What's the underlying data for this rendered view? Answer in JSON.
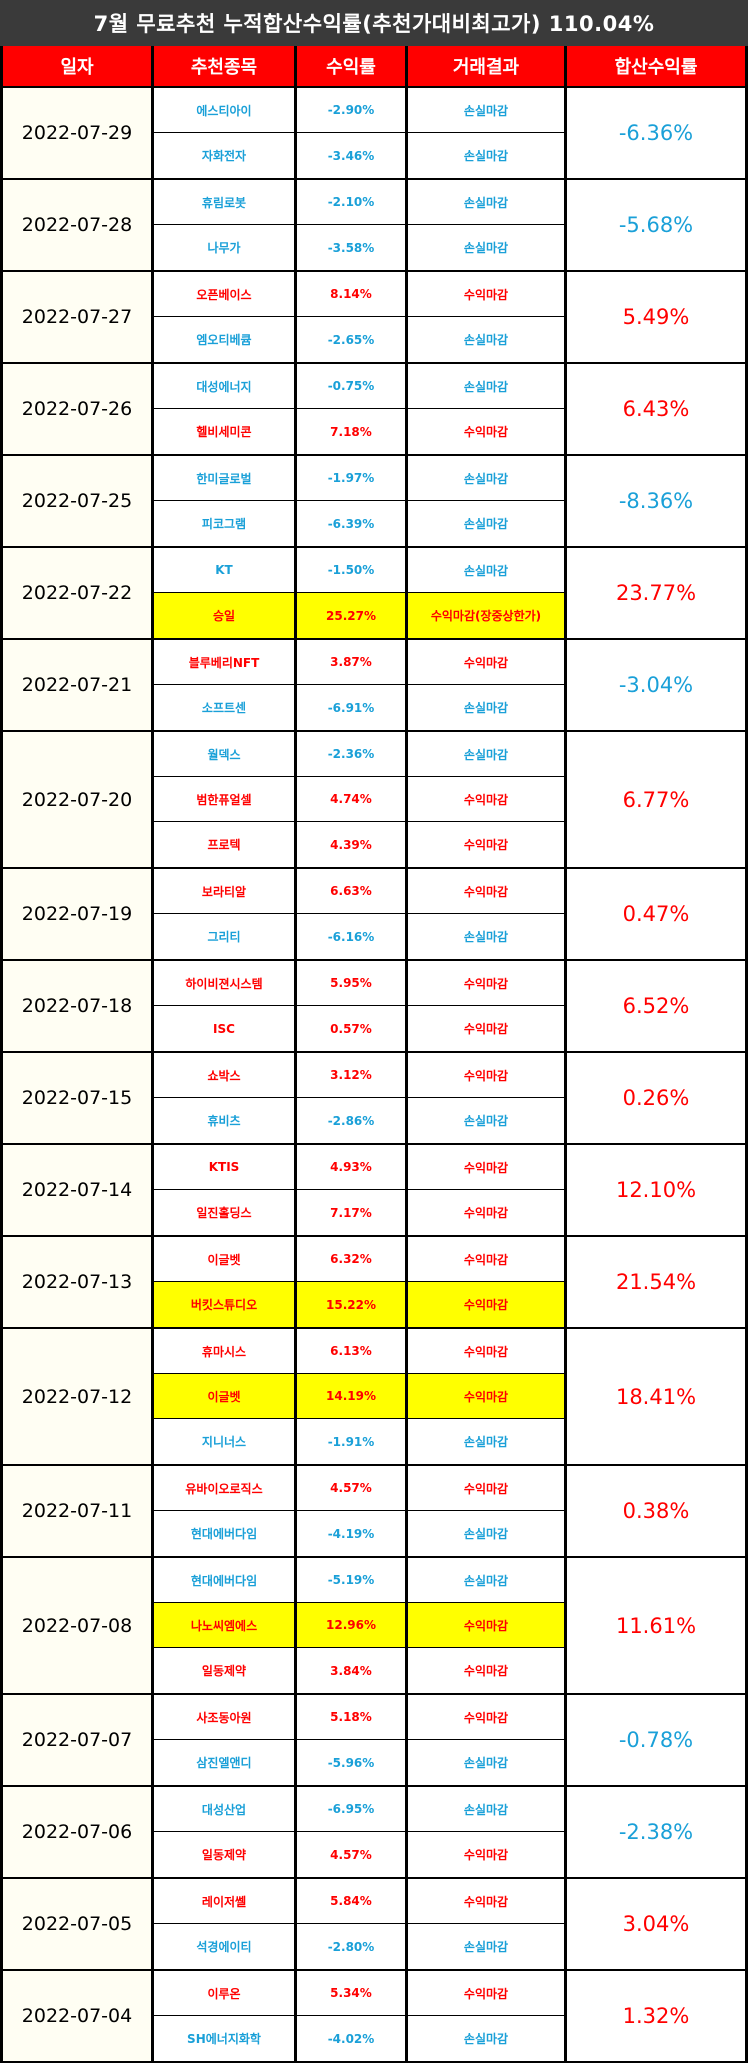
{
  "title": "7월 무료추천 누적합산수익률(추천가대비최고가) 110.04%",
  "headers": [
    "일자",
    "추천종목",
    "수익률",
    "거래결과",
    "합산수익률"
  ],
  "colors": {
    "profit": "#ff0000",
    "loss": "#1aa0d8",
    "highlight": "#ffff00",
    "header_bg": "#ff0000",
    "title_bg": "#3a3a3a"
  },
  "groups": [
    {
      "date": "2022-07-29",
      "total": "-6.36%",
      "rows": [
        {
          "stock": "에스티아이",
          "rate": "-2.90%",
          "result": "손실마감"
        },
        {
          "stock": "자화전자",
          "rate": "-3.46%",
          "result": "손실마감"
        }
      ]
    },
    {
      "date": "2022-07-28",
      "total": "-5.68%",
      "rows": [
        {
          "stock": "휴림로봇",
          "rate": "-2.10%",
          "result": "손실마감"
        },
        {
          "stock": "나무가",
          "rate": "-3.58%",
          "result": "손실마감"
        }
      ]
    },
    {
      "date": "2022-07-27",
      "total": "5.49%",
      "rows": [
        {
          "stock": "오픈베이스",
          "rate": "8.14%",
          "result": "수익마감"
        },
        {
          "stock": "엠오티베큠",
          "rate": "-2.65%",
          "result": "손실마감"
        }
      ]
    },
    {
      "date": "2022-07-26",
      "total": "6.43%",
      "rows": [
        {
          "stock": "대성에너지",
          "rate": "-0.75%",
          "result": "손실마감"
        },
        {
          "stock": "헬비세미콘",
          "rate": "7.18%",
          "result": "수익마감"
        }
      ]
    },
    {
      "date": "2022-07-25",
      "total": "-8.36%",
      "rows": [
        {
          "stock": "한미글로벌",
          "rate": "-1.97%",
          "result": "손실마감"
        },
        {
          "stock": "피코그램",
          "rate": "-6.39%",
          "result": "손실마감"
        }
      ]
    },
    {
      "date": "2022-07-22",
      "total": "23.77%",
      "rows": [
        {
          "stock": "KT",
          "rate": "-1.50%",
          "result": "손실마감"
        },
        {
          "stock": "승일",
          "rate": "25.27%",
          "result": "수익마감(장중상한가)",
          "hl": true
        }
      ]
    },
    {
      "date": "2022-07-21",
      "total": "-3.04%",
      "rows": [
        {
          "stock": "블루베리NFT",
          "rate": "3.87%",
          "result": "수익마감"
        },
        {
          "stock": "소프트센",
          "rate": "-6.91%",
          "result": "손실마감"
        }
      ]
    },
    {
      "date": "2022-07-20",
      "total": "6.77%",
      "rows": [
        {
          "stock": "월덱스",
          "rate": "-2.36%",
          "result": "손실마감"
        },
        {
          "stock": "범한퓨얼셀",
          "rate": "4.74%",
          "result": "수익마감"
        },
        {
          "stock": "프로텍",
          "rate": "4.39%",
          "result": "수익마감"
        }
      ]
    },
    {
      "date": "2022-07-19",
      "total": "0.47%",
      "rows": [
        {
          "stock": "보라티알",
          "rate": "6.63%",
          "result": "수익마감"
        },
        {
          "stock": "그리티",
          "rate": "-6.16%",
          "result": "손실마감"
        }
      ]
    },
    {
      "date": "2022-07-18",
      "total": "6.52%",
      "rows": [
        {
          "stock": "하이비젼시스템",
          "rate": "5.95%",
          "result": "수익마감"
        },
        {
          "stock": "ISC",
          "rate": "0.57%",
          "result": "수익마감"
        }
      ]
    },
    {
      "date": "2022-07-15",
      "total": "0.26%",
      "rows": [
        {
          "stock": "쇼박스",
          "rate": "3.12%",
          "result": "수익마감"
        },
        {
          "stock": "휴비츠",
          "rate": "-2.86%",
          "result": "손실마감"
        }
      ]
    },
    {
      "date": "2022-07-14",
      "total": "12.10%",
      "rows": [
        {
          "stock": "KTIS",
          "rate": "4.93%",
          "result": "수익마감"
        },
        {
          "stock": "일진홀딩스",
          "rate": "7.17%",
          "result": "수익마감"
        }
      ]
    },
    {
      "date": "2022-07-13",
      "total": "21.54%",
      "rows": [
        {
          "stock": "이글벳",
          "rate": "6.32%",
          "result": "수익마감"
        },
        {
          "stock": "버킷스튜디오",
          "rate": "15.22%",
          "result": "수익마감",
          "hl": true
        }
      ]
    },
    {
      "date": "2022-07-12",
      "total": "18.41%",
      "rows": [
        {
          "stock": "휴마시스",
          "rate": "6.13%",
          "result": "수익마감"
        },
        {
          "stock": "이글벳",
          "rate": "14.19%",
          "result": "수익마감",
          "hl": true
        },
        {
          "stock": "지니너스",
          "rate": "-1.91%",
          "result": "손실마감"
        }
      ]
    },
    {
      "date": "2022-07-11",
      "total": "0.38%",
      "rows": [
        {
          "stock": "유바이오로직스",
          "rate": "4.57%",
          "result": "수익마감"
        },
        {
          "stock": "현대에버다임",
          "rate": "-4.19%",
          "result": "손실마감"
        }
      ]
    },
    {
      "date": "2022-07-08",
      "total": "11.61%",
      "rows": [
        {
          "stock": "현대에버다임",
          "rate": "-5.19%",
          "result": "손실마감"
        },
        {
          "stock": "나노씨엠에스",
          "rate": "12.96%",
          "result": "수익마감",
          "hl": true
        },
        {
          "stock": "일동제약",
          "rate": "3.84%",
          "result": "수익마감"
        }
      ]
    },
    {
      "date": "2022-07-07",
      "total": "-0.78%",
      "rows": [
        {
          "stock": "사조동아원",
          "rate": "5.18%",
          "result": "수익마감"
        },
        {
          "stock": "삼진엘앤디",
          "rate": "-5.96%",
          "result": "손실마감"
        }
      ]
    },
    {
      "date": "2022-07-06",
      "total": "-2.38%",
      "rows": [
        {
          "stock": "대성산업",
          "rate": "-6.95%",
          "result": "손실마감"
        },
        {
          "stock": "일동제약",
          "rate": "4.57%",
          "result": "수익마감"
        }
      ]
    },
    {
      "date": "2022-07-05",
      "total": "3.04%",
      "rows": [
        {
          "stock": "레이저쎌",
          "rate": "5.84%",
          "result": "수익마감"
        },
        {
          "stock": "석경에이티",
          "rate": "-2.80%",
          "result": "손실마감"
        }
      ]
    },
    {
      "date": "2022-07-04",
      "total": "1.32%",
      "rows": [
        {
          "stock": "이루온",
          "rate": "5.34%",
          "result": "수익마감"
        },
        {
          "stock": "SH에너지화학",
          "rate": "-4.02%",
          "result": "손실마감"
        }
      ]
    }
  ]
}
